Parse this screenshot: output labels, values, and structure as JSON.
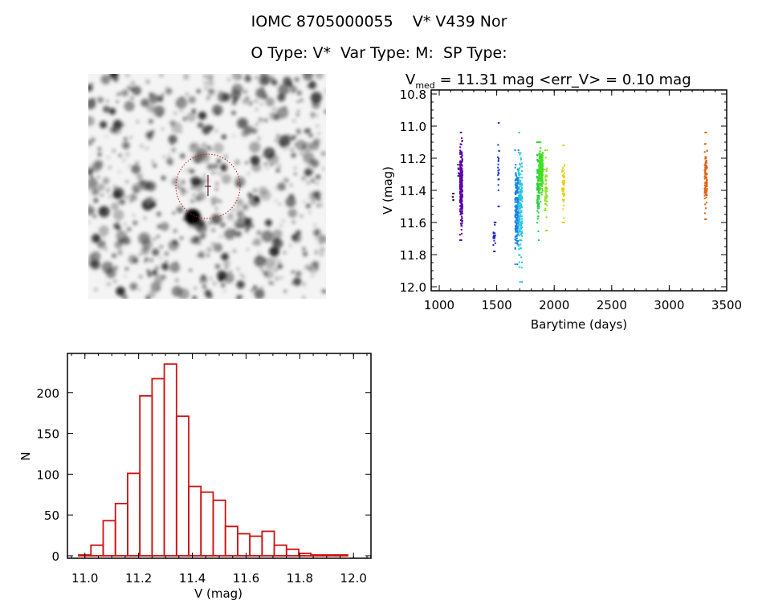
{
  "header": {
    "line1": "IOMC 8705000055    V* V439 Nor",
    "line2": "O Type: V*  Var Type: M:  SP Type:"
  },
  "image_panel": {
    "kind": "greyscale star field",
    "marker": "red dashed circle with cross at target",
    "marker_color": "#c02020"
  },
  "chart_data": [
    {
      "type": "scatter",
      "title_parts": {
        "v": "V",
        "sub": "med",
        "rest": " = 11.31 mag <err_V> = 0.10 mag"
      },
      "xlabel": "Barytime (days)",
      "ylabel": "V (mag)",
      "xlim": [
        930,
        3500
      ],
      "ylim": [
        10.775,
        12.025
      ],
      "y_inverted": true,
      "xticks": [
        "1000",
        "1500",
        "2000",
        "2500",
        "3000",
        "3500"
      ],
      "yticks": [
        "10.8",
        "11.0",
        "11.2",
        "11.4",
        "11.6",
        "11.8",
        "12.0"
      ],
      "grid": false,
      "series_note": "point groups (time range, V range, color)",
      "groups": [
        {
          "t": [
            1115,
            1125
          ],
          "v": [
            11.42,
            11.46
          ],
          "n": 6,
          "color": "#3a0050"
        },
        {
          "t": [
            1160,
            1172
          ],
          "v": [
            11.24,
            11.31
          ],
          "n": 8,
          "color": "#5a00a0"
        },
        {
          "t": [
            1180,
            1202
          ],
          "v": [
            11.04,
            11.71
          ],
          "n": 260,
          "color": "#5a00a8"
        },
        {
          "t": [
            1470,
            1492
          ],
          "v": [
            11.6,
            11.78
          ],
          "n": 20,
          "color": "#2020b8"
        },
        {
          "t": [
            1510,
            1522
          ],
          "v": [
            10.98,
            11.5
          ],
          "n": 22,
          "color": "#1838c8"
        },
        {
          "t": [
            1660,
            1690
          ],
          "v": [
            11.15,
            11.86
          ],
          "n": 200,
          "color": "#1a80e8"
        },
        {
          "t": [
            1688,
            1722
          ],
          "v": [
            11.04,
            11.97
          ],
          "n": 160,
          "color": "#20c8e0"
        },
        {
          "t": [
            1850,
            1870
          ],
          "v": [
            11.1,
            11.71
          ],
          "n": 90,
          "color": "#20d040"
        },
        {
          "t": [
            1868,
            1902
          ],
          "v": [
            11.1,
            11.47
          ],
          "n": 200,
          "color": "#40e020"
        },
        {
          "t": [
            1918,
            1940
          ],
          "v": [
            11.15,
            11.65
          ],
          "n": 50,
          "color": "#90e020"
        },
        {
          "t": [
            2068,
            2090
          ],
          "v": [
            11.12,
            11.6
          ],
          "n": 50,
          "color": "#e8d000"
        },
        {
          "t": [
            3308,
            3330
          ],
          "v": [
            11.04,
            11.58
          ],
          "n": 90,
          "color": "#e06010"
        }
      ]
    },
    {
      "type": "bar",
      "subtype": "histogram",
      "xlabel": "V (mag)",
      "ylabel": "N",
      "xlim": [
        10.935,
        12.065
      ],
      "ylim": [
        -3,
        248
      ],
      "xticks": [
        "11.0",
        "11.2",
        "11.4",
        "11.6",
        "11.8",
        "12.0"
      ],
      "yticks": [
        "0",
        "50",
        "100",
        "150",
        "200"
      ],
      "bin_start": 10.977,
      "bin_width": 0.0455,
      "values": [
        1,
        13,
        43,
        64,
        101,
        196,
        217,
        235,
        171,
        85,
        78,
        68,
        36,
        27,
        24,
        30,
        13,
        8,
        3,
        1,
        1,
        1
      ],
      "bar_color": "#d01010",
      "grid": false
    }
  ]
}
